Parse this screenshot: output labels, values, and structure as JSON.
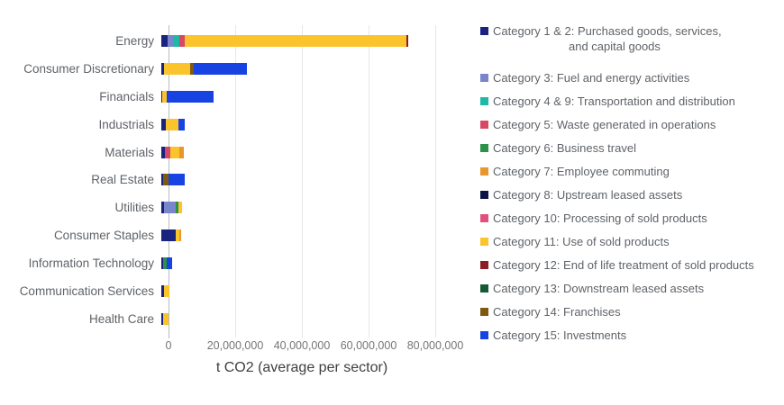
{
  "chart_data": {
    "type": "bar",
    "orientation": "horizontal",
    "stacked": true,
    "title": "",
    "xlabel": "t CO2 (average per sector)",
    "xlim": [
      0,
      80000000
    ],
    "grid": "vertical-lines-on",
    "legend_position": "right",
    "x_ticks": [
      {
        "value": 0,
        "label": "0"
      },
      {
        "value": 20000000,
        "label": "20,000,000"
      },
      {
        "value": 40000000,
        "label": "40,000,000"
      },
      {
        "value": 60000000,
        "label": "60,000,000"
      },
      {
        "value": 80000000,
        "label": "80,000,000"
      }
    ],
    "legend": [
      {
        "id": "c1_2",
        "color": "#1a237e",
        "label": "Category 1 & 2: Purchased goods, services,",
        "label2": "and capital goods"
      },
      {
        "id": "c3",
        "color": "#7986cb",
        "label": "Category 3: Fuel and energy activities"
      },
      {
        "id": "c4_9",
        "color": "#1db9a4",
        "label": "Category 4 & 9: Transportation and distribution"
      },
      {
        "id": "c5",
        "color": "#d84765",
        "label": "Category 5: Waste generated in operations"
      },
      {
        "id": "c6",
        "color": "#2d9248",
        "label": "Category 6: Business travel"
      },
      {
        "id": "c7",
        "color": "#e8962e",
        "label": "Category 7: Employee commuting"
      },
      {
        "id": "c8",
        "color": "#0c1445",
        "label": "Category 8: Upstream leased assets"
      },
      {
        "id": "c10",
        "color": "#e2517d",
        "label": "Category 10: Processing of sold products"
      },
      {
        "id": "c11",
        "color": "#fbc32c",
        "label": "Category 11: Use of sold products"
      },
      {
        "id": "c12",
        "color": "#8c1c26",
        "label": "Category 12: End of life treatment of sold products"
      },
      {
        "id": "c13",
        "color": "#155a35",
        "label": "Category 13: Downstream leased assets"
      },
      {
        "id": "c14",
        "color": "#7d5a10",
        "label": "Category 14: Franchises"
      },
      {
        "id": "c15",
        "color": "#1743e3",
        "label": "Category 15: Investments"
      }
    ],
    "sectors": [
      {
        "label": "Energy",
        "total": 74000000,
        "segments": [
          {
            "category": "c1_2",
            "value": 1900000
          },
          {
            "category": "c3",
            "value": 1600000
          },
          {
            "category": "c4_9",
            "value": 1900000
          },
          {
            "category": "c5",
            "value": 1600000
          },
          {
            "category": "c11",
            "value": 66500000
          },
          {
            "category": "c12",
            "value": 500000
          }
        ]
      },
      {
        "label": "Consumer Discretionary",
        "total": 25600000,
        "segments": [
          {
            "category": "c1_2",
            "value": 700000
          },
          {
            "category": "c11",
            "value": 8000000
          },
          {
            "category": "c14",
            "value": 900000
          },
          {
            "category": "c15",
            "value": 16000000
          }
        ]
      },
      {
        "label": "Financials",
        "total": 15600000,
        "segments": [
          {
            "category": "c1_2",
            "value": 300000
          },
          {
            "category": "c11",
            "value": 1400000
          },
          {
            "category": "c15",
            "value": 13900000
          }
        ]
      },
      {
        "label": "Industrials",
        "total": 7000000,
        "segments": [
          {
            "category": "c1_2",
            "value": 1300000
          },
          {
            "category": "c11",
            "value": 3900000
          },
          {
            "category": "c15",
            "value": 1800000
          }
        ]
      },
      {
        "label": "Materials",
        "total": 6800000,
        "segments": [
          {
            "category": "c1_2",
            "value": 1200000
          },
          {
            "category": "c5",
            "value": 1500000
          },
          {
            "category": "c11",
            "value": 2600000
          },
          {
            "category": "c7",
            "value": 1500000
          }
        ]
      },
      {
        "label": "Real Estate",
        "total": 7100000,
        "segments": [
          {
            "category": "c1_2",
            "value": 500000
          },
          {
            "category": "c14",
            "value": 1700000
          },
          {
            "category": "c15",
            "value": 4900000
          }
        ]
      },
      {
        "label": "Utilities",
        "total": 6200000,
        "segments": [
          {
            "category": "c1_2",
            "value": 800000
          },
          {
            "category": "c3",
            "value": 3600000
          },
          {
            "category": "c6",
            "value": 700000
          },
          {
            "category": "c11",
            "value": 1100000
          }
        ]
      },
      {
        "label": "Consumer Staples",
        "total": 6000000,
        "segments": [
          {
            "category": "c1_2",
            "value": 4300000
          },
          {
            "category": "c11",
            "value": 1200000
          },
          {
            "category": "c7",
            "value": 500000
          }
        ]
      },
      {
        "label": "Information Technology",
        "total": 3200000,
        "segments": [
          {
            "category": "c1_2",
            "value": 600000
          },
          {
            "category": "c6",
            "value": 900000
          },
          {
            "category": "c15",
            "value": 1700000
          }
        ]
      },
      {
        "label": "Communication Services",
        "total": 2400000,
        "segments": [
          {
            "category": "c1_2",
            "value": 700000
          },
          {
            "category": "c11",
            "value": 1700000
          }
        ]
      },
      {
        "label": "Health Care",
        "total": 2200000,
        "segments": [
          {
            "category": "c1_2",
            "value": 600000
          },
          {
            "category": "c11",
            "value": 1600000
          }
        ]
      }
    ]
  }
}
